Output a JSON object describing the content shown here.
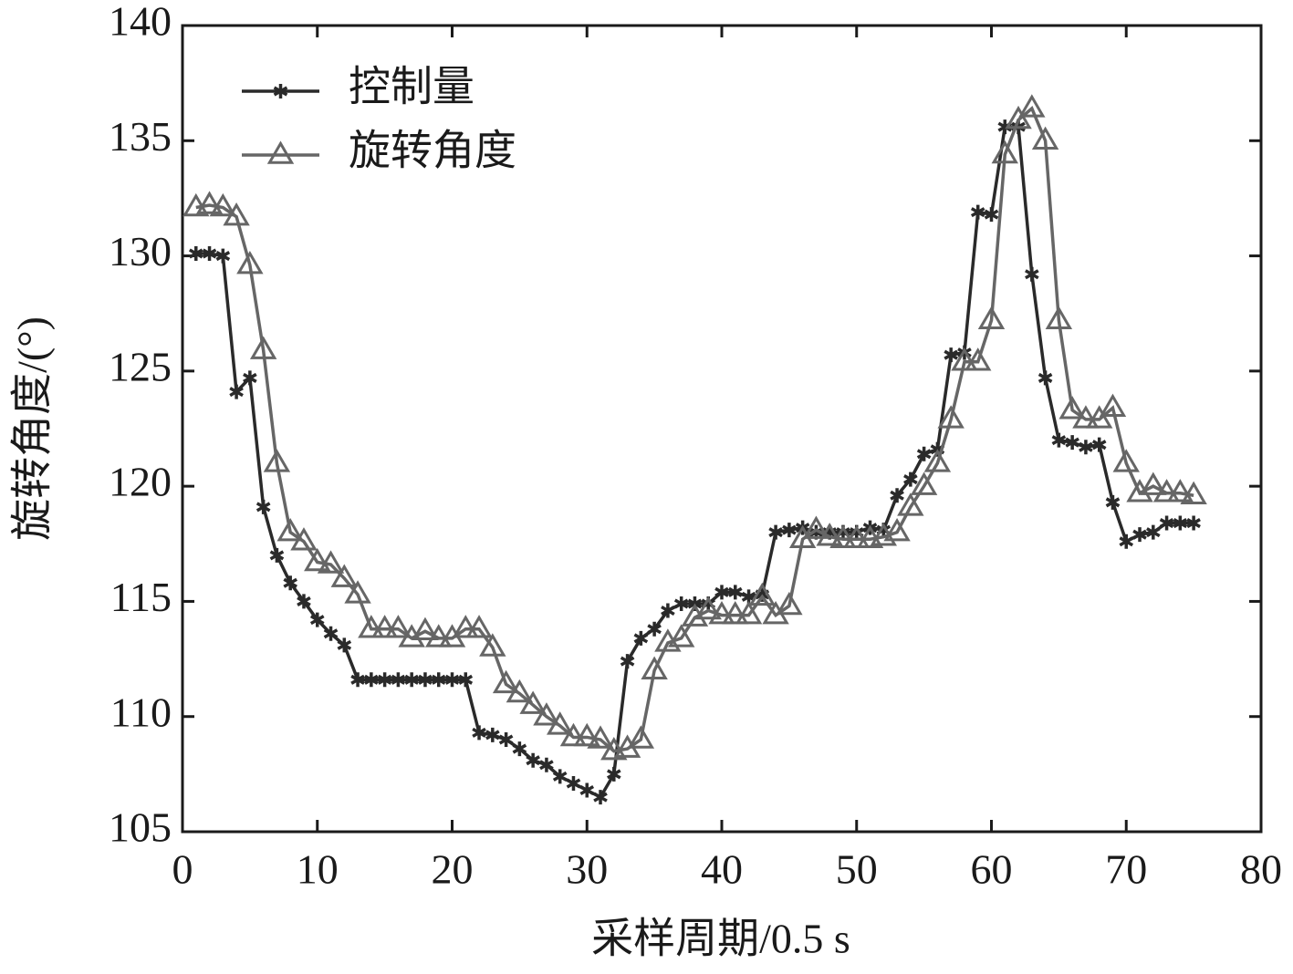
{
  "chart_data": {
    "type": "line",
    "x_label": "采样周期/0.5 s",
    "y_label": "旋转角度/(°)",
    "x": [
      1,
      2,
      3,
      4,
      5,
      6,
      7,
      8,
      9,
      10,
      11,
      12,
      13,
      14,
      15,
      16,
      17,
      18,
      19,
      20,
      21,
      22,
      23,
      24,
      25,
      26,
      27,
      28,
      29,
      30,
      31,
      32,
      33,
      34,
      35,
      36,
      37,
      38,
      39,
      40,
      41,
      42,
      43,
      44,
      45,
      46,
      47,
      48,
      49,
      50,
      51,
      52,
      53,
      54,
      55,
      56,
      57,
      58,
      59,
      60,
      61,
      62,
      63,
      64,
      65,
      66,
      67,
      68,
      69,
      70,
      71,
      72,
      73,
      74,
      75
    ],
    "series": [
      {
        "name": "控制量",
        "color": "#2a2a2a",
        "marker": "asterisk",
        "values": [
          130.1,
          130.1,
          130.0,
          124.1,
          124.7,
          119.1,
          117.0,
          115.8,
          115.0,
          114.2,
          113.6,
          113.1,
          111.6,
          111.6,
          111.6,
          111.6,
          111.6,
          111.6,
          111.6,
          111.6,
          111.6,
          109.3,
          109.2,
          109.0,
          108.6,
          108.1,
          107.9,
          107.4,
          107.1,
          106.8,
          106.5,
          107.5,
          112.4,
          113.4,
          113.8,
          114.6,
          114.9,
          114.9,
          114.9,
          115.4,
          115.4,
          115.2,
          115.3,
          118.0,
          118.1,
          118.2,
          118.0,
          118.0,
          118.0,
          118.0,
          118.2,
          118.1,
          119.6,
          120.3,
          121.4,
          121.6,
          125.7,
          125.8,
          131.9,
          131.8,
          135.6,
          135.6,
          129.2,
          124.7,
          122.0,
          121.9,
          121.7,
          121.8,
          119.3,
          117.6,
          117.9,
          118.0,
          118.4,
          118.4,
          118.4
        ]
      },
      {
        "name": "旋转角度",
        "color": "#666666",
        "marker": "triangle",
        "values": [
          132.1,
          132.2,
          132.1,
          131.7,
          129.6,
          125.9,
          121.0,
          118.0,
          117.6,
          116.7,
          116.6,
          116.0,
          115.3,
          113.8,
          113.8,
          113.8,
          113.4,
          113.7,
          113.4,
          113.4,
          113.8,
          113.8,
          113.0,
          111.4,
          111.0,
          110.5,
          110.0,
          109.6,
          109.1,
          109.1,
          109.0,
          108.5,
          108.6,
          109.0,
          112.0,
          113.2,
          113.4,
          114.3,
          114.6,
          114.4,
          114.4,
          114.4,
          115.2,
          114.4,
          114.8,
          117.7,
          118.1,
          117.8,
          117.7,
          117.7,
          117.7,
          117.8,
          118.0,
          119.1,
          120.0,
          121.0,
          122.9,
          125.4,
          125.4,
          127.2,
          134.4,
          135.9,
          136.4,
          135.0,
          127.2,
          123.3,
          122.9,
          122.9,
          123.4,
          121.0,
          119.7,
          120.0,
          119.7,
          119.7,
          119.6
        ]
      }
    ],
    "xlim": [
      0,
      80
    ],
    "xticks": [
      0,
      10,
      20,
      30,
      40,
      50,
      60,
      70,
      80
    ],
    "ylim": [
      105,
      140
    ],
    "yticks": [
      105,
      110,
      115,
      120,
      125,
      130,
      135,
      140
    ],
    "legend": "upper-left"
  }
}
